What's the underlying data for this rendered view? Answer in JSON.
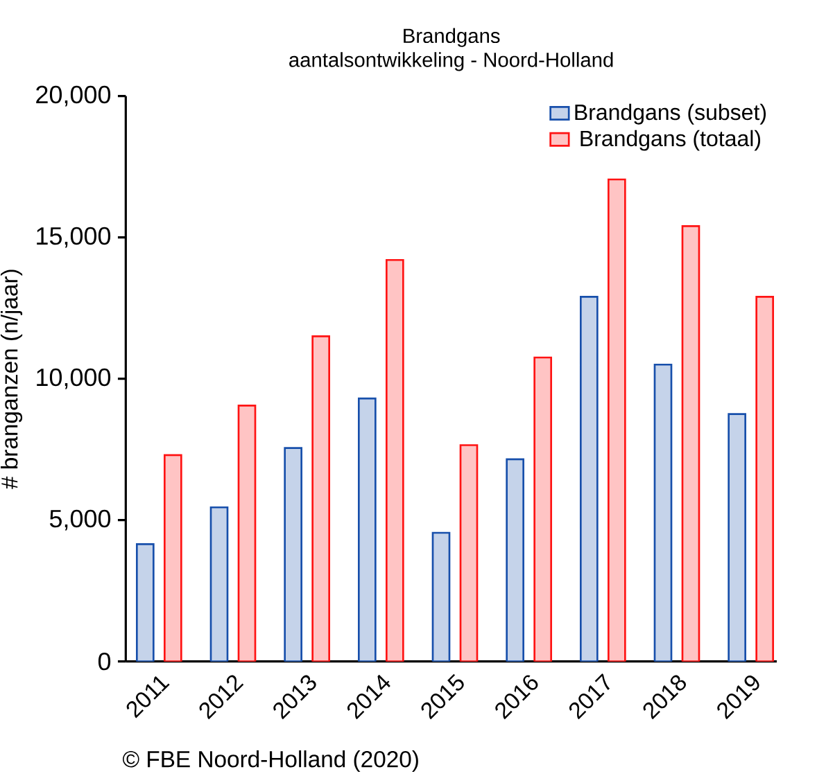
{
  "chart_data": {
    "type": "bar",
    "title": "Brandgans",
    "subtitle": "aantalsontwikkeling - Noord-Holland",
    "ylabel": "# branganzen (n/jaar)",
    "categories": [
      "2011",
      "2012",
      "2013",
      "2014",
      "2015",
      "2016",
      "2017",
      "2018",
      "2019"
    ],
    "series": [
      {
        "name": "Brandgans (subset)",
        "color": "#c5d3ea",
        "values": [
          4150,
          5450,
          7550,
          9300,
          4550,
          7150,
          12900,
          10500,
          8750
        ]
      },
      {
        "name": "Brandgans (totaal)",
        "color": "#ffc4c4",
        "values": [
          7300,
          9050,
          11500,
          14200,
          7650,
          10750,
          17050,
          15400,
          12900
        ]
      }
    ],
    "ylim": [
      0,
      20000
    ],
    "yticks": [
      0,
      {
        "value": 5000,
        "label": "5,000"
      },
      {
        "value": 10000,
        "label": "10,000"
      },
      {
        "value": 15000,
        "label": "15,000"
      },
      {
        "value": 20000,
        "label": "20,000"
      }
    ],
    "legend": "top right",
    "annotations": [
      "© FBE Noord-Holland (2020)"
    ]
  }
}
